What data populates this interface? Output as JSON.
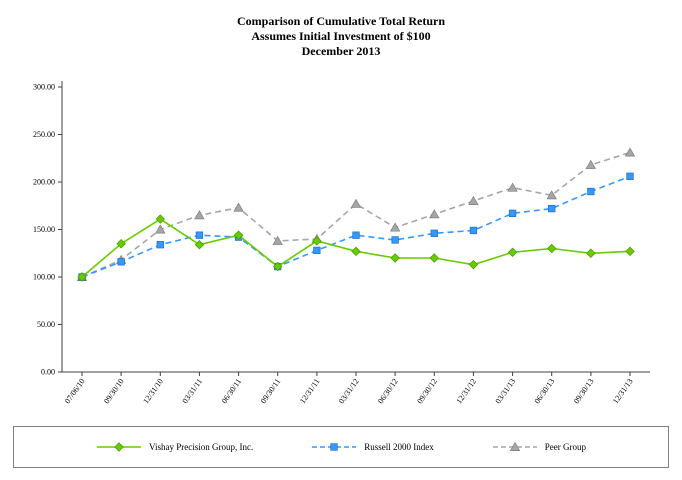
{
  "chart_data": {
    "type": "line",
    "title": [
      "Comparison of Cumulative Total Return",
      "Assumes Initial Investment of $100",
      "December 2013"
    ],
    "categories": [
      "07/06/10",
      "09/30/10",
      "12/31/10",
      "03/31/11",
      "06/30/11",
      "09/30/11",
      "12/31/11",
      "03/31/12",
      "06/30/12",
      "09/30/12",
      "12/31/12",
      "03/31/13",
      "06/30/13",
      "09/30/13",
      "12/31/13"
    ],
    "series": [
      {
        "name": "Vishay Precision Group, Inc.",
        "color": "#66cc00",
        "edge_color": "#4a9900",
        "marker": "diamond",
        "line_style": "solid",
        "values": [
          100,
          135,
          161,
          134,
          144,
          111,
          138,
          127,
          120,
          120,
          113,
          126,
          130,
          125,
          127
        ]
      },
      {
        "name": "Russell 2000 Index",
        "color": "#3399ff",
        "edge_color": "#1f6fbf",
        "marker": "square",
        "line_style": "dashed",
        "values": [
          100,
          116,
          134,
          144,
          142,
          111,
          128,
          144,
          139,
          146,
          149,
          167,
          172,
          190,
          206
        ]
      },
      {
        "name": "Peer Group",
        "color": "#a6a6a6",
        "edge_color": "#7f7f7f",
        "marker": "triangle",
        "line_style": "dashed",
        "values": [
          100,
          118,
          150,
          165,
          173,
          138,
          140,
          177,
          152,
          166,
          180,
          194,
          186,
          218,
          231
        ]
      }
    ],
    "ylim": [
      0,
      300
    ],
    "y_ticks": [
      "0.00",
      "50.00",
      "100.00",
      "150.00",
      "200.00",
      "250.00",
      "300.00"
    ],
    "grid": false,
    "legend_position": "bottom"
  }
}
